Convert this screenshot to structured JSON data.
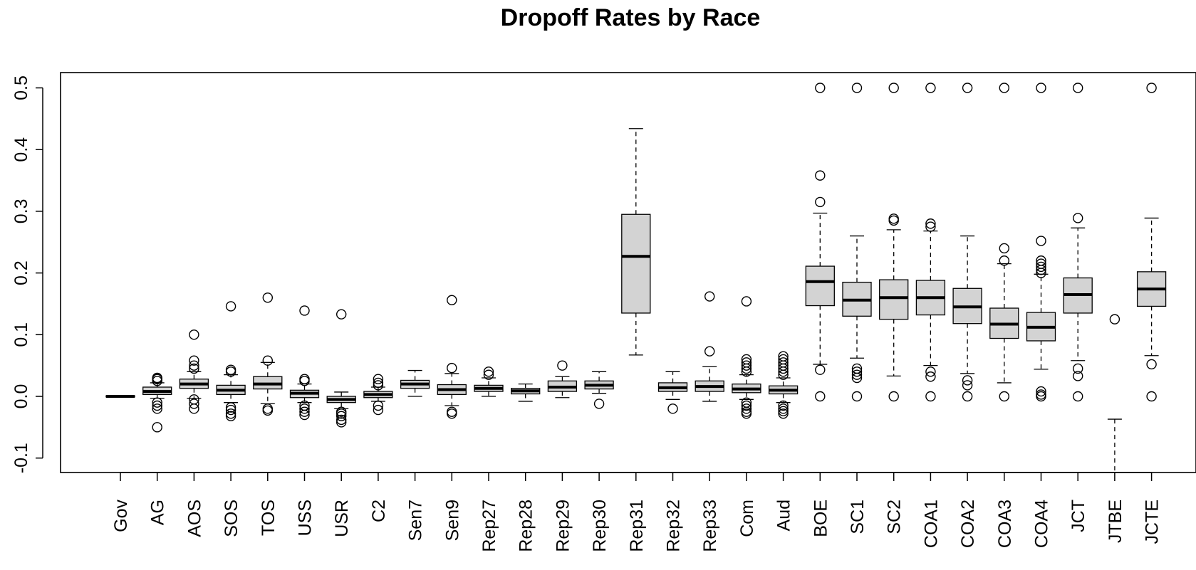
{
  "chart_data": {
    "type": "boxplot",
    "title": "Dropoff Rates by Race",
    "xlabel": "",
    "ylabel": "",
    "ylim": [
      -0.125,
      0.525
    ],
    "y_ticks": [
      "-0.1",
      "0.0",
      "0.1",
      "0.2",
      "0.3",
      "0.4",
      "0.5"
    ],
    "grid": false,
    "box_color": "#d3d3d3",
    "categories": [
      "Gov",
      "AG",
      "AOS",
      "SOS",
      "TOS",
      "USS",
      "USR",
      "C2",
      "Sen7",
      "Sen9",
      "Rep27",
      "Rep28",
      "Rep29",
      "Rep30",
      "Rep31",
      "Rep32",
      "Rep33",
      "Com",
      "Aud",
      "BOE",
      "SC1",
      "SC2",
      "COA1",
      "COA2",
      "COA3",
      "COA4",
      "JCT",
      "JTBE",
      "JCTE"
    ],
    "boxes": [
      {
        "q1": -0.001,
        "median": 0.0,
        "q3": 0.001,
        "whisker_low": -0.001,
        "whisker_high": 0.001,
        "outliers": []
      },
      {
        "q1": 0.003,
        "median": 0.008,
        "q3": 0.015,
        "whisker_low": -0.003,
        "whisker_high": 0.022,
        "outliers": [
          -0.05,
          -0.02,
          -0.015,
          -0.01,
          0.025,
          0.028,
          0.03
        ]
      },
      {
        "q1": 0.013,
        "median": 0.02,
        "q3": 0.028,
        "whisker_low": -0.003,
        "whisker_high": 0.04,
        "outliers": [
          -0.02,
          -0.012,
          -0.005,
          0.045,
          0.05,
          0.058,
          0.1
        ]
      },
      {
        "q1": 0.003,
        "median": 0.01,
        "q3": 0.018,
        "whisker_low": -0.01,
        "whisker_high": 0.035,
        "outliers": [
          -0.032,
          -0.028,
          -0.022,
          -0.018,
          0.04,
          0.043,
          0.146
        ]
      },
      {
        "q1": 0.012,
        "median": 0.02,
        "q3": 0.032,
        "whisker_low": -0.012,
        "whisker_high": 0.055,
        "outliers": [
          -0.023,
          -0.02,
          0.058,
          0.16
        ]
      },
      {
        "q1": -0.002,
        "median": 0.005,
        "q3": 0.01,
        "whisker_low": -0.01,
        "whisker_high": 0.02,
        "outliers": [
          -0.03,
          -0.025,
          -0.02,
          -0.015,
          0.025,
          0.028,
          0.139
        ]
      },
      {
        "q1": -0.01,
        "median": -0.005,
        "q3": 0.0,
        "whisker_low": -0.02,
        "whisker_high": 0.007,
        "outliers": [
          -0.042,
          -0.038,
          -0.032,
          -0.028,
          -0.025,
          0.133
        ]
      },
      {
        "q1": -0.002,
        "median": 0.003,
        "q3": 0.008,
        "whisker_low": -0.008,
        "whisker_high": 0.015,
        "outliers": [
          -0.022,
          -0.015,
          0.018,
          0.022,
          0.028
        ]
      },
      {
        "q1": 0.013,
        "median": 0.02,
        "q3": 0.026,
        "whisker_low": 0.0,
        "whisker_high": 0.042,
        "outliers": []
      },
      {
        "q1": 0.003,
        "median": 0.011,
        "q3": 0.019,
        "whisker_low": -0.015,
        "whisker_high": 0.037,
        "outliers": [
          -0.028,
          -0.025,
          0.046,
          0.156
        ]
      },
      {
        "q1": 0.008,
        "median": 0.013,
        "q3": 0.018,
        "whisker_low": 0.0,
        "whisker_high": 0.03,
        "outliers": [
          0.035,
          0.04
        ]
      },
      {
        "q1": 0.004,
        "median": 0.009,
        "q3": 0.013,
        "whisker_low": -0.008,
        "whisker_high": 0.02,
        "outliers": []
      },
      {
        "q1": 0.008,
        "median": 0.015,
        "q3": 0.025,
        "whisker_low": -0.002,
        "whisker_high": 0.032,
        "outliers": [
          0.05
        ]
      },
      {
        "q1": 0.012,
        "median": 0.018,
        "q3": 0.025,
        "whisker_low": 0.005,
        "whisker_high": 0.04,
        "outliers": [
          -0.012
        ]
      },
      {
        "q1": 0.135,
        "median": 0.227,
        "q3": 0.295,
        "whisker_low": 0.067,
        "whisker_high": 0.434,
        "outliers": []
      },
      {
        "q1": 0.008,
        "median": 0.014,
        "q3": 0.022,
        "whisker_low": -0.005,
        "whisker_high": 0.04,
        "outliers": [
          -0.02
        ]
      },
      {
        "q1": 0.008,
        "median": 0.016,
        "q3": 0.025,
        "whisker_low": -0.008,
        "whisker_high": 0.048,
        "outliers": [
          0.073,
          0.162
        ]
      },
      {
        "q1": 0.006,
        "median": 0.012,
        "q3": 0.02,
        "whisker_low": -0.005,
        "whisker_high": 0.035,
        "outliers": [
          -0.028,
          -0.025,
          -0.02,
          -0.015,
          -0.01,
          0.04,
          0.045,
          0.05,
          0.055,
          0.06,
          0.154
        ]
      },
      {
        "q1": 0.004,
        "median": 0.01,
        "q3": 0.017,
        "whisker_low": -0.01,
        "whisker_high": 0.03,
        "outliers": [
          -0.028,
          -0.024,
          -0.02,
          -0.015,
          0.035,
          0.04,
          0.045,
          0.05,
          0.055,
          0.06,
          0.065
        ]
      },
      {
        "q1": 0.147,
        "median": 0.186,
        "q3": 0.211,
        "whisker_low": 0.052,
        "whisker_high": 0.297,
        "outliers": [
          0.0,
          0.043,
          0.315,
          0.358,
          0.5
        ]
      },
      {
        "q1": 0.13,
        "median": 0.156,
        "q3": 0.185,
        "whisker_low": 0.062,
        "whisker_high": 0.26,
        "outliers": [
          0.0,
          0.03,
          0.035,
          0.04,
          0.045,
          0.5
        ]
      },
      {
        "q1": 0.125,
        "median": 0.16,
        "q3": 0.189,
        "whisker_low": 0.033,
        "whisker_high": 0.27,
        "outliers": [
          0.0,
          0.285,
          0.288,
          0.5
        ]
      },
      {
        "q1": 0.132,
        "median": 0.16,
        "q3": 0.188,
        "whisker_low": 0.05,
        "whisker_high": 0.268,
        "outliers": [
          0.0,
          0.032,
          0.04,
          0.275,
          0.28,
          0.5
        ]
      },
      {
        "q1": 0.118,
        "median": 0.145,
        "q3": 0.175,
        "whisker_low": 0.037,
        "whisker_high": 0.26,
        "outliers": [
          0.0,
          0.018,
          0.026,
          0.5
        ]
      },
      {
        "q1": 0.094,
        "median": 0.117,
        "q3": 0.143,
        "whisker_low": 0.022,
        "whisker_high": 0.215,
        "outliers": [
          0.0,
          0.22,
          0.24,
          0.5
        ]
      },
      {
        "q1": 0.09,
        "median": 0.112,
        "q3": 0.136,
        "whisker_low": 0.044,
        "whisker_high": 0.198,
        "outliers": [
          0.0,
          0.003,
          0.008,
          0.2,
          0.205,
          0.21,
          0.215,
          0.22,
          0.252,
          0.5
        ]
      },
      {
        "q1": 0.135,
        "median": 0.165,
        "q3": 0.192,
        "whisker_low": 0.058,
        "whisker_high": 0.273,
        "outliers": [
          0.0,
          0.033,
          0.045,
          0.289,
          0.5
        ]
      },
      {
        "q1": null,
        "median": null,
        "q3": null,
        "whisker_low": -0.125,
        "whisker_high": -0.037,
        "outliers": [
          0.125
        ]
      },
      {
        "q1": 0.146,
        "median": 0.174,
        "q3": 0.202,
        "whisker_low": 0.066,
        "whisker_high": 0.289,
        "outliers": [
          0.0,
          0.052,
          0.5
        ]
      }
    ]
  }
}
